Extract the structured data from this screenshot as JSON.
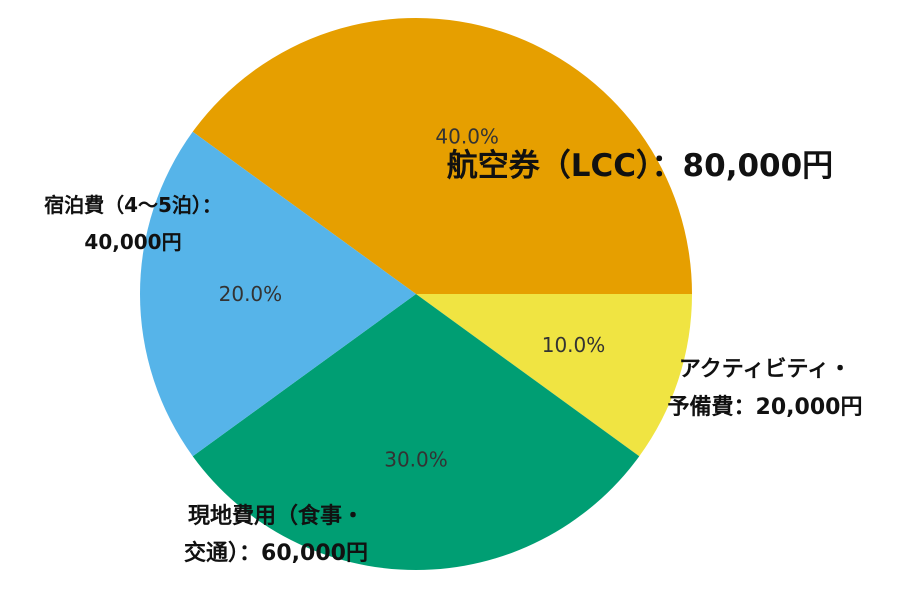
{
  "chart_data": {
    "type": "pie",
    "slices": [
      {
        "name": "航空券（LCC）：80,000円",
        "label_lines": [
          "航空券（LCC）：80,000円"
        ],
        "value": 80000,
        "percent_label": "40.0%",
        "color": "#E69F00"
      },
      {
        "name": "アクティビティ・予備費：20,000円",
        "label_lines": [
          "アクティビティ・",
          "予備費：20,000円"
        ],
        "value": 20000,
        "percent_label": "10.0%",
        "color": "#F0E442"
      },
      {
        "name": "現地費用（食事・交通）：60,000円",
        "label_lines": [
          "現地費用（食事・",
          "交通）：60,000円"
        ],
        "value": 60000,
        "percent_label": "30.0%",
        "color": "#009E73"
      },
      {
        "name": "宿泊費（4〜5泊）：40,000円",
        "label_lines": [
          "宿泊費（4〜5泊）：",
          "40,000円"
        ],
        "value": 40000,
        "percent_label": "20.0%",
        "color": "#56B4E9"
      }
    ],
    "start_angle_deg": 144,
    "direction": "clockwise"
  }
}
